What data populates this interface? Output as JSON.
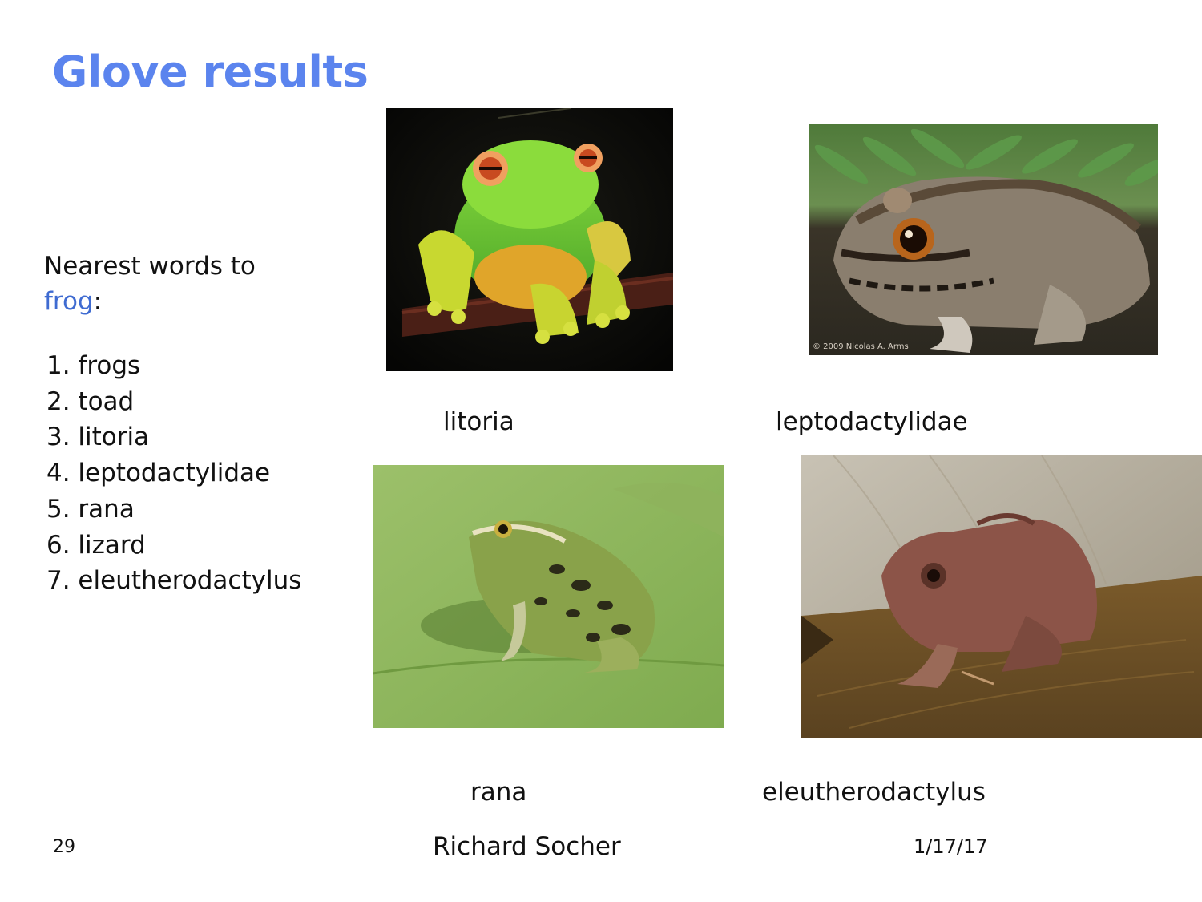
{
  "slide": {
    "title": "Glove results",
    "intro_prefix": "Nearest words to",
    "query_word": "frog",
    "intro_suffix": ":",
    "nearest_words": [
      "1. frogs",
      "2. toad",
      "3. litoria",
      "4. leptodactylidae",
      "5. rana",
      "6. lizard",
      "7. eleutherodactylus"
    ],
    "images": [
      {
        "caption": "litoria",
        "icon": "green-tree-frog-photo"
      },
      {
        "caption": "leptodactylidae",
        "icon": "brown-frog-photo",
        "credit": "© 2009 Nicolas A. Arms"
      },
      {
        "caption": "rana",
        "icon": "green-pond-frog-photo"
      },
      {
        "caption": "eleutherodactylus",
        "icon": "brown-leaf-frog-photo"
      }
    ],
    "footer": {
      "slide_number": "29",
      "author": "Richard Socher",
      "date": "1/17/17"
    },
    "colors": {
      "title": "#5b84ee",
      "query_word": "#3f6bd1",
      "text": "#111111"
    }
  }
}
